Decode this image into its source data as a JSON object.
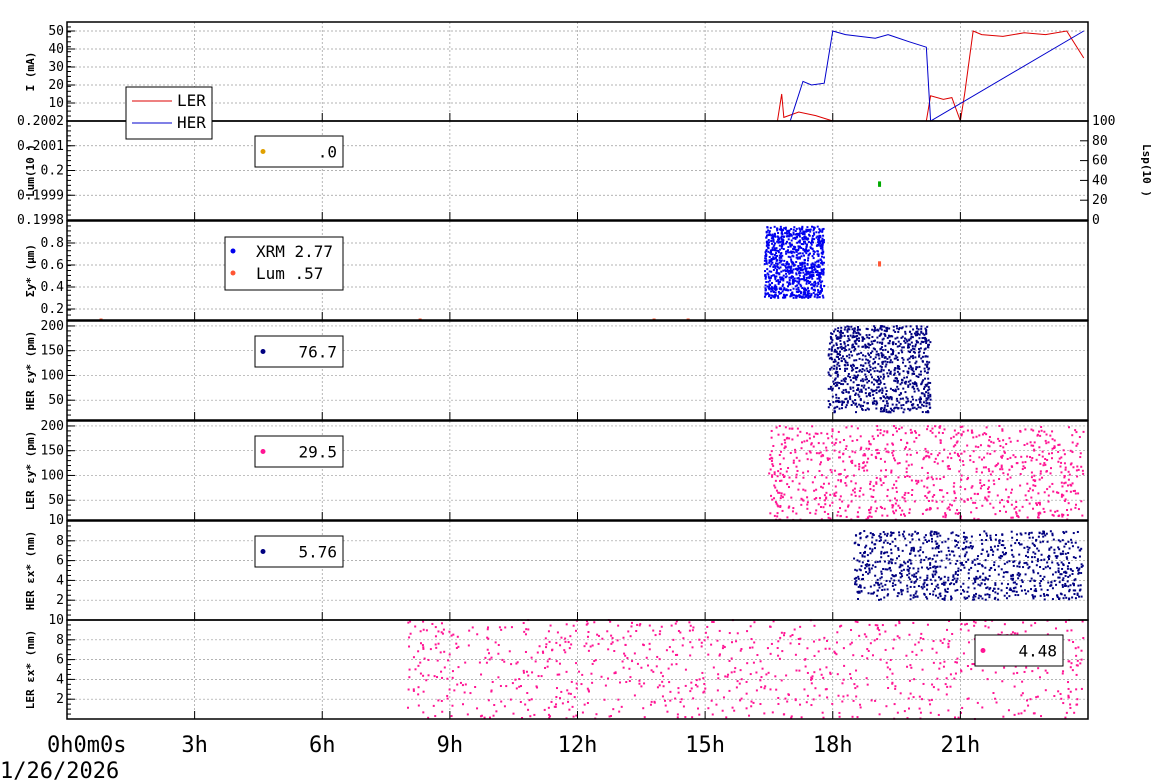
{
  "chart_data": [
    {
      "type": "line",
      "ylabel": "I (mA)",
      "ylim": [
        0,
        55
      ],
      "yticks": [
        "10",
        "20",
        "30",
        "40",
        "50"
      ],
      "ytick_values": [
        10,
        20,
        30,
        40,
        50
      ],
      "legend": [
        "LER",
        "HER"
      ],
      "legend_placement": "bottom-left",
      "series": [
        {
          "name": "LER",
          "color": "#dd0000",
          "x": [
            0,
            16.7,
            16.8,
            16.85,
            17.2,
            17.6,
            18.0,
            20.2,
            20.3,
            20.6,
            20.8,
            21.0,
            21.1,
            21.3,
            21.5,
            22.0,
            22.5,
            23.0,
            23.5,
            23.9
          ],
          "y": [
            0,
            0,
            15,
            2,
            5,
            3,
            0,
            0,
            14,
            12,
            13,
            0,
            15,
            50,
            48,
            47,
            49,
            48,
            50,
            35
          ]
        },
        {
          "name": "HER",
          "color": "#0000cc",
          "x": [
            0,
            17.0,
            17.3,
            17.5,
            17.8,
            18.0,
            18.3,
            19.0,
            19.3,
            19.8,
            20.2,
            20.3,
            23.9
          ],
          "y": [
            0,
            0,
            22,
            20,
            21,
            50,
            48,
            46,
            48,
            44,
            41,
            0,
            50
          ]
        }
      ]
    },
    {
      "type": "scatter",
      "ylabel": "Lum(10 )",
      "ylim": [
        0.1998,
        0.2002
      ],
      "yticks": [
        "0.1998",
        "0.1999",
        "0.2",
        "0.2001",
        "0.2002"
      ],
      "ytick_values": [
        0.1998,
        0.1999,
        0.2,
        0.2001,
        0.2002
      ],
      "y2label": "Lsp(10 )",
      "y2ticks": [
        "0",
        "20",
        "40",
        "60",
        "80",
        "100"
      ],
      "y2tick_values": [
        0,
        20,
        40,
        60,
        80,
        100
      ],
      "legend_value": ".0",
      "legend_color": "#e0a000",
      "series": [
        {
          "color": "#00aa00",
          "x": [
            19.1,
            19.1
          ],
          "y": [
            0.19994,
            0.19995
          ]
        }
      ]
    },
    {
      "type": "scatter",
      "ylabel": "Σy* (μm)",
      "ylim": [
        0.1,
        1.0
      ],
      "yticks": [
        "0.2",
        "0.4",
        "0.6",
        "0.8"
      ],
      "ytick_values": [
        0.2,
        0.4,
        0.6,
        0.8
      ],
      "legend": [
        {
          "name": "XRM",
          "value": "2.77",
          "color": "#0000ee"
        },
        {
          "name": "Lum",
          "value": ".57",
          "color": "#ff5533"
        }
      ],
      "series": [
        {
          "name": "XRM",
          "color": "#0000ee",
          "x_range": [
            16.4,
            17.8
          ],
          "y_range": [
            0.3,
            0.95
          ]
        },
        {
          "name": "Lum",
          "color": "#ff5533",
          "x": [
            0.8,
            8.3,
            13.8,
            14.6,
            19.1,
            19.1
          ],
          "y": [
            0.1,
            0.1,
            0.1,
            0.1,
            0.6,
            0.62
          ]
        }
      ]
    },
    {
      "type": "scatter",
      "ylabel": "HER εy* (pm)",
      "ylim": [
        10,
        210
      ],
      "yticks": [
        "50",
        "100",
        "150",
        "200"
      ],
      "ytick_values": [
        50,
        100,
        150,
        200
      ],
      "legend_value": "76.7",
      "legend_color": "#000080",
      "series": [
        {
          "color": "#000080",
          "x_range": [
            17.9,
            20.3
          ],
          "y_range": [
            25,
            200
          ]
        }
      ]
    },
    {
      "type": "scatter",
      "ylabel": "LER εy* (pm)",
      "ylim": [
        10,
        210
      ],
      "yticks": [
        "10",
        "50",
        "100",
        "150",
        "200"
      ],
      "ytick_values": [
        10,
        50,
        100,
        150,
        200
      ],
      "legend_value": "29.5",
      "legend_color": "#ff1493",
      "series": [
        {
          "color": "#ff1493",
          "x_range": [
            16.5,
            23.9
          ],
          "y_range": [
            10,
            200
          ]
        }
      ]
    },
    {
      "type": "scatter",
      "ylabel": "HER εx* (nm)",
      "ylim": [
        0,
        10
      ],
      "yticks": [
        "2",
        "4",
        "6",
        "8"
      ],
      "ytick_values": [
        2,
        4,
        6,
        8
      ],
      "legend_value": "5.76",
      "legend_color": "#000080",
      "series": [
        {
          "color": "#000080",
          "x_range": [
            18.5,
            23.9
          ],
          "y_range": [
            2,
            9
          ]
        }
      ]
    },
    {
      "type": "scatter",
      "ylabel": "LER εx* (nm)",
      "ylim": [
        0,
        10
      ],
      "yticks": [
        "2",
        "4",
        "6",
        "8",
        "10"
      ],
      "ytick_values": [
        2,
        4,
        6,
        8,
        10
      ],
      "legend_value": "4.48",
      "legend_color": "#ff1493",
      "series": [
        {
          "color": "#ff1493",
          "x_range": [
            8.0,
            23.9
          ],
          "y_range": [
            0,
            10
          ]
        }
      ]
    }
  ],
  "x_axis": {
    "range_hours": [
      0,
      24
    ],
    "ticks": [
      {
        "h": 0,
        "main": "0",
        "label": "0h0m0s"
      },
      {
        "h": 3,
        "main": "3",
        "label": "3h"
      },
      {
        "h": 6,
        "main": "6",
        "label": "6h"
      },
      {
        "h": 9,
        "main": "9",
        "label": "9h"
      },
      {
        "h": 12,
        "main": "12",
        "label": "12h"
      },
      {
        "h": 15,
        "main": "15",
        "label": "15h"
      },
      {
        "h": 18,
        "main": "18",
        "label": "18h"
      },
      {
        "h": 21,
        "main": "21",
        "label": "21h"
      }
    ],
    "date": "1/26/2026"
  }
}
